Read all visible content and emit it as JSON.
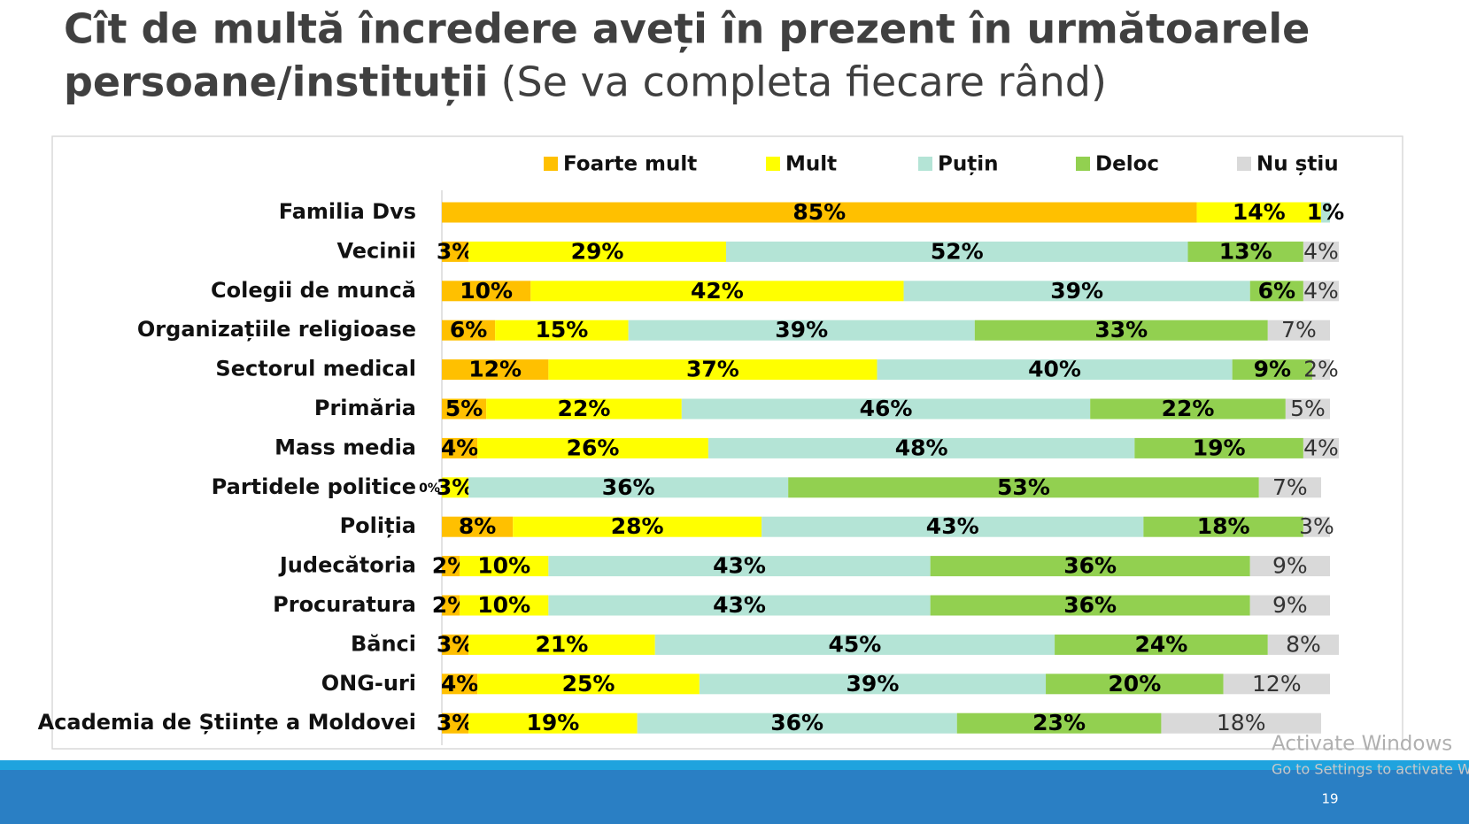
{
  "chart_data": {
    "type": "stacked-bar-horizontal",
    "title": [
      "Cît de multă încredere aveți în prezent în următoarele",
      "persoane/instituții"
    ],
    "subtitle": "(Se va completa fiecare rând)",
    "categories": [
      "Familia Dvs",
      "Vecinii",
      "Colegii de muncă",
      "Organizațiile religioase",
      "Sectorul medical",
      "Primăria",
      "Mass media",
      "Partidele politice",
      "Poliția",
      "Judecătoria",
      "Procuratura",
      "Bănci",
      "ONG-uri",
      "Academia de Științe a Moldovei"
    ],
    "xlim": [
      0,
      100
    ],
    "legend": "top",
    "series": [
      {
        "name": "Foarte mult",
        "color": "#ffc000",
        "values": [
          85,
          3,
          10,
          6,
          12,
          5,
          4,
          0,
          8,
          2,
          2,
          3,
          4,
          3
        ],
        "value_labels": [
          "85%",
          "3%",
          "10%",
          "6%",
          "12%",
          "5%",
          "4%",
          "0%",
          "8%",
          "2%",
          "2%",
          "3%",
          "4%",
          "3%"
        ]
      },
      {
        "name": "Mult",
        "color": "#ffff00",
        "values": [
          14,
          29,
          42,
          15,
          37,
          22,
          26,
          3,
          28,
          10,
          10,
          21,
          25,
          19
        ],
        "value_labels": [
          "14%",
          "29%",
          "42%",
          "15%",
          "37%",
          "22%",
          "26%",
          "3%",
          "28%",
          "10%",
          "10%",
          "21%",
          "25%",
          "19%"
        ]
      },
      {
        "name": "Puțin",
        "color": "#b4e4d6",
        "values": [
          1,
          52,
          39,
          39,
          40,
          46,
          48,
          36,
          43,
          43,
          43,
          45,
          39,
          36
        ],
        "value_labels": [
          "1%",
          "52%",
          "39%",
          "39%",
          "40%",
          "46%",
          "48%",
          "36%",
          "43%",
          "43%",
          "43%",
          "45%",
          "39%",
          "36%"
        ]
      },
      {
        "name": "Deloc",
        "color": "#92d050",
        "values": [
          null,
          13,
          6,
          33,
          9,
          22,
          19,
          53,
          18,
          36,
          36,
          24,
          20,
          23
        ],
        "value_labels": [
          null,
          "13%",
          "6%",
          "33%",
          "9%",
          "22%",
          "19%",
          "53%",
          "18%",
          "36%",
          "36%",
          "24%",
          "20%",
          "23%"
        ]
      },
      {
        "name": "Nu știu",
        "color": "#d9d9d9",
        "values": [
          null,
          4,
          4,
          7,
          2,
          5,
          4,
          7,
          3,
          9,
          9,
          8,
          12,
          18
        ],
        "value_labels": [
          null,
          "4%",
          "4%",
          "7%",
          "2%",
          "5%",
          "4%",
          "7%",
          "3%",
          "9%",
          "9%",
          "8%",
          "12%",
          "18%"
        ]
      }
    ]
  },
  "slide_number": "19",
  "watermark": [
    "Activate Windows",
    "Go to Settings to activate Windows."
  ]
}
